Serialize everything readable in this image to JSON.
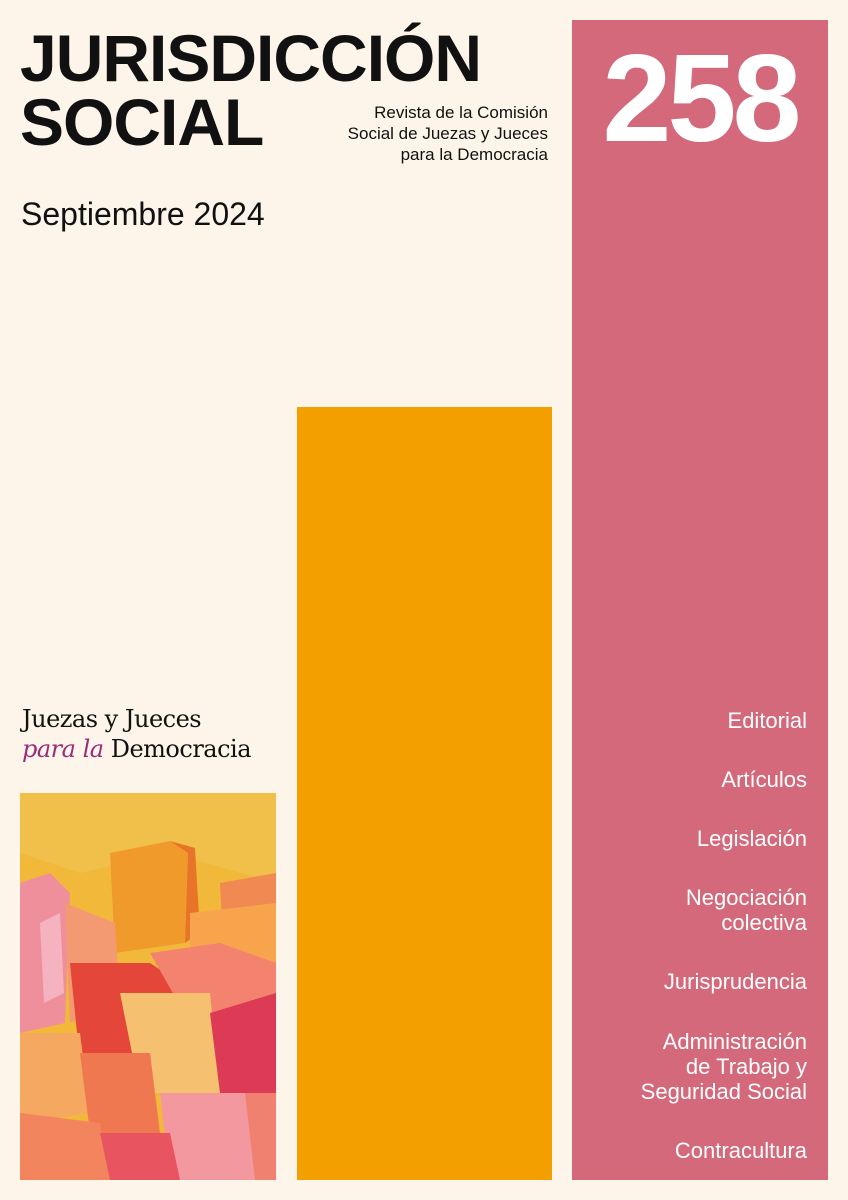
{
  "header": {
    "title": [
      "JURISDICCIÓN",
      "SOCIAL"
    ],
    "subtitle": [
      "Revista de la Comisión",
      "Social de Juezas y Jueces",
      "para la Democracia"
    ],
    "date": "Septiembre 2024",
    "issue": "258"
  },
  "logo": {
    "top": "Juezas y Jueces",
    "italic": "para la",
    "bottom": "Democracia"
  },
  "sections": [
    [
      "Editorial"
    ],
    [
      "Artículos"
    ],
    [
      "Legislación"
    ],
    [
      "Negociación",
      "colectiva"
    ],
    [
      "Jurisprudencia"
    ],
    [
      "Administración",
      "de Trabajo y",
      "Seguridad Social"
    ],
    [
      "Contracultura"
    ]
  ]
}
